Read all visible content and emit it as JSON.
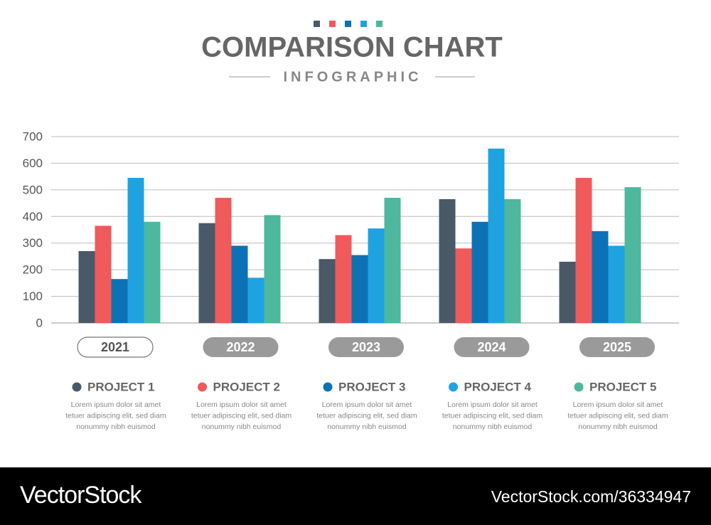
{
  "chart_data": {
    "type": "bar",
    "title": "COMPARISON CHART",
    "subtitle": "INFOGRAPHIC",
    "categories": [
      "2021",
      "2022",
      "2023",
      "2024",
      "2025"
    ],
    "series": [
      {
        "name": "PROJECT 1",
        "color": "#4a5968",
        "values": [
          270,
          375,
          240,
          465,
          230
        ]
      },
      {
        "name": "PROJECT 2",
        "color": "#f05a5a",
        "values": [
          365,
          470,
          330,
          280,
          545
        ]
      },
      {
        "name": "PROJECT 3",
        "color": "#0d72b5",
        "values": [
          165,
          290,
          255,
          380,
          345
        ]
      },
      {
        "name": "PROJECT 4",
        "color": "#1fa3e0",
        "values": [
          545,
          170,
          355,
          655,
          290
        ]
      },
      {
        "name": "PROJECT 5",
        "color": "#4db89e",
        "values": [
          380,
          405,
          470,
          465,
          510
        ]
      }
    ],
    "legend_notes": [
      [
        "Lorem ipsum dolor sit amet",
        "tetuer adipiscing elit, sed diam",
        "nonummy nibh euismod"
      ],
      [
        "Lorem ipsum dolor sit amet",
        "tetuer adipiscing elit, sed diam",
        "nonummy nibh euismod"
      ],
      [
        "Lorem ipsum dolor sit amet",
        "tetuer adipiscing elit, sed diam",
        "nonummy nibh euismod"
      ],
      [
        "Lorem ipsum dolor sit amet",
        "tetuer adipiscing elit, sed diam",
        "nonummy nibh euismod"
      ],
      [
        "Lorem ipsum dolor sit amet",
        "tetuer adipiscing elit, sed diam",
        "nonummy nibh euismod"
      ]
    ],
    "ylim": [
      0,
      700
    ],
    "yticks": [
      0,
      100,
      200,
      300,
      400,
      500,
      600,
      700
    ],
    "grid": true
  },
  "footer": {
    "brand": "VectorStock",
    "id": "VectorStock.com/36334947"
  }
}
